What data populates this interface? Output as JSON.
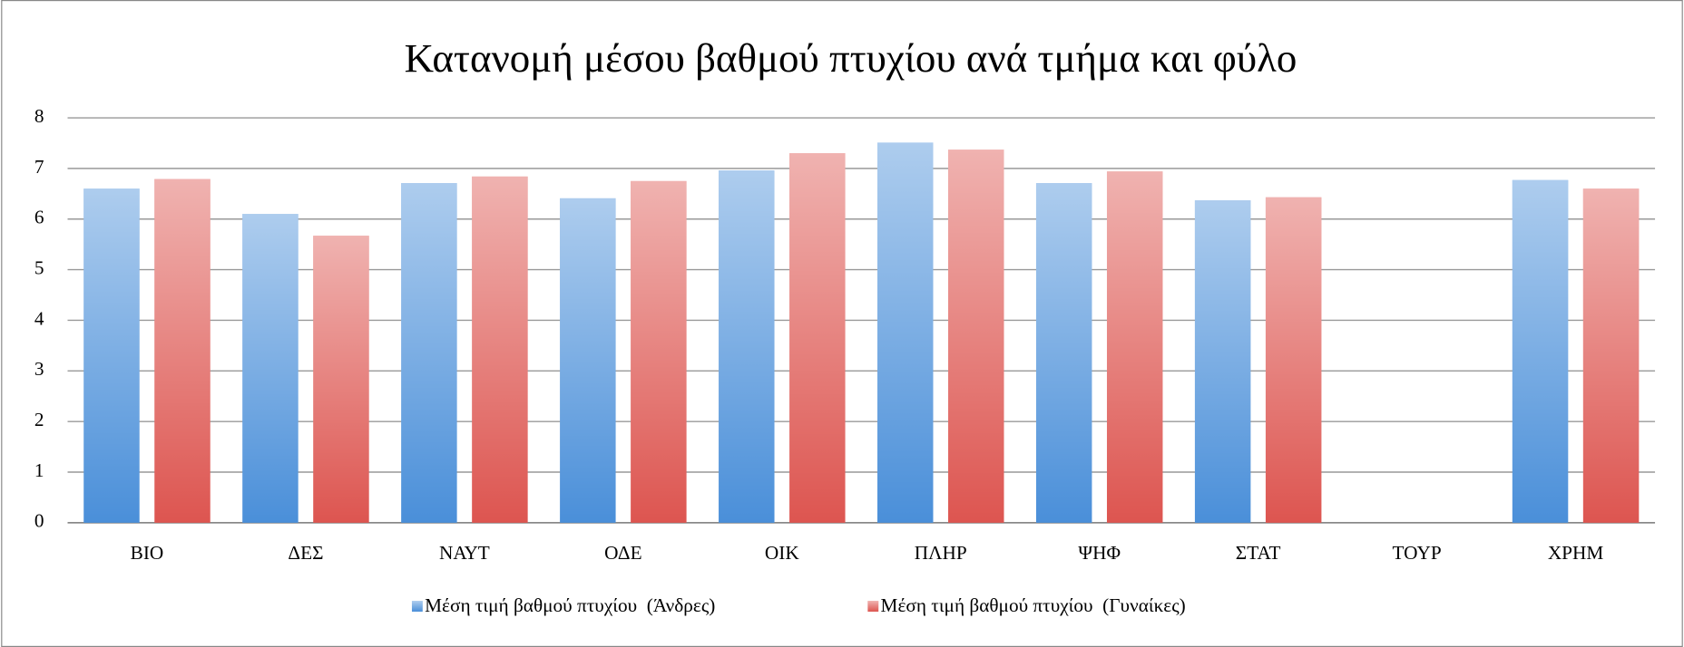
{
  "chart_data": {
    "type": "bar",
    "title": "Κατανομή μέσου βαθμού πτυχίου ανά τμήμα και φύλο",
    "categories": [
      "ΒΙΟ",
      "ΔΕΣ",
      "ΝΑΥΤ",
      "ΟΔΕ",
      "ΟΙΚ",
      "ΠΛΗΡ",
      "ΨΗΦ",
      "ΣΤΑΤ",
      "ΤΟΥΡ",
      "ΧΡΗΜ"
    ],
    "series": [
      {
        "name": "Μέση τιμή βαθμού πτυχίου  (Άνδρες)",
        "color": "#4a8fd9",
        "values": [
          6.6,
          6.1,
          6.71,
          6.41,
          6.96,
          7.51,
          6.71,
          6.37,
          null,
          6.77
        ]
      },
      {
        "name": "Μέση τιμή βαθμού πτυχίου  (Γυναίκες)",
        "color": "#dd5550",
        "values": [
          6.79,
          5.67,
          6.84,
          6.75,
          7.3,
          7.37,
          6.94,
          6.43,
          null,
          6.6
        ]
      }
    ],
    "ylim": [
      0,
      8
    ],
    "yticks": [
      0,
      1,
      2,
      3,
      4,
      5,
      6,
      7,
      8
    ],
    "grid": true,
    "legend": "bottom"
  }
}
